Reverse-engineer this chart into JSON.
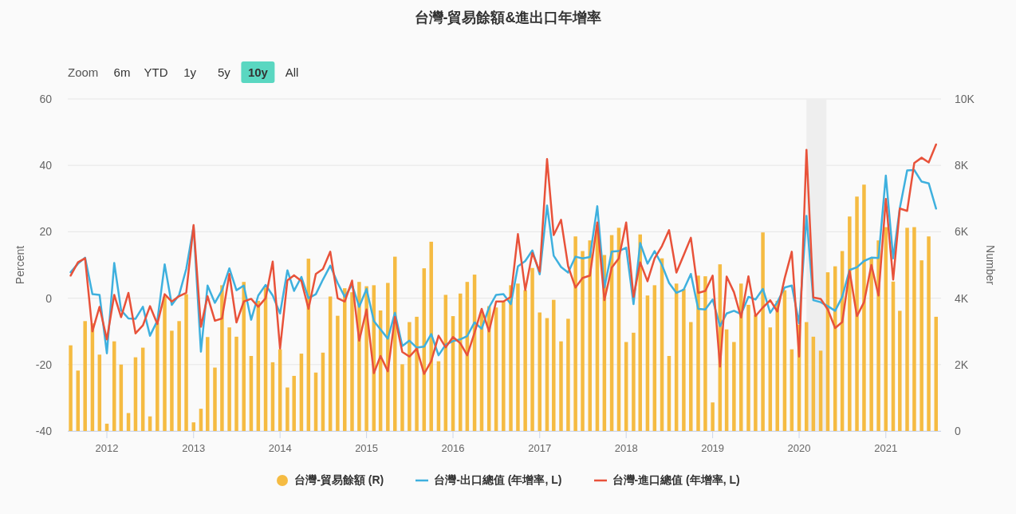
{
  "chart_data": {
    "type": "bar",
    "title": "台灣-貿易餘額&進出口年增率",
    "ylabel": "Percent",
    "y2label": "Number",
    "annotations": [
      "Zoom",
      "6m",
      "YTD",
      "1y",
      "5y",
      "10y",
      "All"
    ],
    "x": [
      "2011-08",
      "2011-09",
      "2011-10",
      "2011-11",
      "2011-12",
      "2012-01",
      "2012-02",
      "2012-03",
      "2012-04",
      "2012-05",
      "2012-06",
      "2012-07",
      "2012-08",
      "2012-09",
      "2012-10",
      "2012-11",
      "2012-12",
      "2013-01",
      "2013-02",
      "2013-03",
      "2013-04",
      "2013-05",
      "2013-06",
      "2013-07",
      "2013-08",
      "2013-09",
      "2013-10",
      "2013-11",
      "2013-12",
      "2014-01",
      "2014-02",
      "2014-03",
      "2014-04",
      "2014-05",
      "2014-06",
      "2014-07",
      "2014-08",
      "2014-09",
      "2014-10",
      "2014-11",
      "2014-12",
      "2015-01",
      "2015-02",
      "2015-03",
      "2015-04",
      "2015-05",
      "2015-06",
      "2015-07",
      "2015-08",
      "2015-09",
      "2015-10",
      "2015-11",
      "2015-12",
      "2016-01",
      "2016-02",
      "2016-03",
      "2016-04",
      "2016-05",
      "2016-06",
      "2016-07",
      "2016-08",
      "2016-09",
      "2016-10",
      "2016-11",
      "2016-12",
      "2017-01",
      "2017-02",
      "2017-03",
      "2017-04",
      "2017-05",
      "2017-06",
      "2017-07",
      "2017-08",
      "2017-09",
      "2017-10",
      "2017-11",
      "2017-12",
      "2018-01",
      "2018-02",
      "2018-03",
      "2018-04",
      "2018-05",
      "2018-06",
      "2018-07",
      "2018-08",
      "2018-09",
      "2018-10",
      "2018-11",
      "2018-12",
      "2019-01",
      "2019-02",
      "2019-03",
      "2019-04",
      "2019-05",
      "2019-06",
      "2019-07",
      "2019-08",
      "2019-09",
      "2019-10",
      "2019-11",
      "2019-12",
      "2020-01",
      "2020-02",
      "2020-03",
      "2020-04",
      "2020-05",
      "2020-06",
      "2020-07",
      "2020-08",
      "2020-09",
      "2020-10",
      "2020-11",
      "2020-12",
      "2021-01",
      "2021-02",
      "2021-03",
      "2021-04",
      "2021-05",
      "2021-06",
      "2021-07",
      "2021-08"
    ],
    "series": [
      {
        "name": "台灣-貿易餘額 (R)",
        "axis": "y2",
        "color": "#f5bb42",
        "values": [
          2580,
          1820,
          3310,
          3240,
          2300,
          220,
          2700,
          2000,
          540,
          2220,
          2510,
          440,
          3260,
          4040,
          3020,
          3310,
          4120,
          260,
          670,
          2830,
          1910,
          4390,
          3120,
          2840,
          4490,
          2260,
          3920,
          4320,
          2070,
          2460,
          1310,
          1660,
          2330,
          5190,
          1760,
          2360,
          4050,
          3470,
          4300,
          4180,
          4490,
          4360,
          4390,
          3630,
          4460,
          5250,
          2010,
          3280,
          3440,
          4900,
          5700,
          2100,
          4100,
          3460,
          4140,
          4490,
          4710,
          3560,
          3760,
          3720,
          3900,
          4390,
          4440,
          4240,
          4910,
          3570,
          3400,
          3950,
          2700,
          3380,
          5860,
          5420,
          5740,
          6200,
          5300,
          5900,
          6120,
          2680,
          2960,
          5920,
          4080,
          4390,
          5200,
          2260,
          4440,
          4280,
          3280,
          4680,
          4660,
          860,
          5020,
          3060,
          2680,
          4440,
          3800,
          3500,
          5980,
          3120,
          3920,
          4240,
          2460,
          3200,
          3280,
          2840,
          2420,
          4780,
          4960,
          5420,
          6460,
          7060,
          7420,
          5200,
          5740,
          6140,
          4500,
          3620,
          6120,
          6140,
          5140,
          5860,
          3440
        ]
      },
      {
        "name": "台灣-出口總值 (年增率, L)",
        "type": "line",
        "color": "#3eb0de",
        "values": [
          7.8,
          10.4,
          12.2,
          1.2,
          1.0,
          -16.6,
          10.6,
          -3.6,
          -6.1,
          -6.2,
          -2.6,
          -11.3,
          -6.8,
          10.2,
          -2.0,
          1.0,
          8.8,
          21.6,
          -16.1,
          3.8,
          -1.4,
          2.4,
          9.0,
          2.4,
          3.8,
          -6.5,
          0.8,
          4.0,
          0.8,
          -4.6,
          8.4,
          2.2,
          6.4,
          0,
          1.2,
          5.6,
          9.8,
          4.6,
          0.4,
          4.0,
          -2.6,
          2.8,
          -6.9,
          -9.4,
          -12.2,
          -4.4,
          -14.4,
          -12.8,
          -14.9,
          -14.6,
          -10.8,
          -17.2,
          -14.0,
          -12.9,
          -12.4,
          -11.4,
          -7.3,
          -9.2,
          -2.8,
          1.0,
          1.2,
          -1.8,
          9.6,
          11.2,
          14.4,
          7.2,
          27.9,
          12.8,
          9.4,
          7.7,
          12.5,
          12.0,
          12.4,
          27.7,
          3.2,
          14.0,
          14.2,
          15.2,
          -1.8,
          16.6,
          10.4,
          14.2,
          10.0,
          4.6,
          1.6,
          2.6,
          7.3,
          -3.2,
          -3.4,
          -0.4,
          -8.4,
          -4.6,
          -3.8,
          -4.8,
          0.4,
          -0.4,
          2.8,
          -4.4,
          -1.2,
          3.2,
          3.8,
          -7.6,
          24.8,
          -0.6,
          -1.2,
          -2.4,
          -3.8,
          0.4,
          8.5,
          9.3,
          11.2,
          12.2,
          12.1,
          36.9,
          12.0,
          27.1,
          38.5,
          38.6,
          35.1,
          34.6,
          27.0
        ]
      },
      {
        "name": "台灣-進口總值 (年增率, L)",
        "type": "line",
        "color": "#e8523a",
        "values": [
          6.8,
          10.8,
          12.0,
          -10.0,
          -2.6,
          -12.4,
          1.0,
          -5.7,
          1.6,
          -10.6,
          -8.2,
          -2.4,
          -7.8,
          1.2,
          -1.0,
          0.6,
          1.6,
          22.0,
          -8.6,
          0.6,
          -6.8,
          -6.1,
          7.3,
          -7.3,
          -1.0,
          -0.2,
          -2.6,
          0,
          11.0,
          -15.2,
          5.4,
          6.9,
          5.2,
          -3.2,
          7.3,
          8.8,
          14.0,
          0,
          -1.0,
          5.3,
          -12.8,
          -3.4,
          -22.6,
          -17.4,
          -22.0,
          -5.6,
          -16.2,
          -17.6,
          -15.2,
          -22.8,
          -19.0,
          -11.3,
          -14.8,
          -11.7,
          -13.6,
          -17.2,
          -10.4,
          -3.2,
          -10.0,
          -1.0,
          -1.0,
          0.4,
          19.3,
          2.4,
          13.6,
          8.0,
          41.9,
          19.0,
          23.6,
          9.6,
          3.2,
          6.1,
          6.8,
          22.8,
          -0.6,
          9.2,
          12.0,
          22.8,
          0.4,
          10.8,
          5.1,
          12.0,
          15.7,
          20.5,
          7.7,
          13.0,
          18.2,
          1.6,
          2.2,
          6.8,
          -20.6,
          6.5,
          1.8,
          -5.8,
          6.6,
          -5.4,
          -2.8,
          -0.6,
          -4.0,
          6.0,
          14.0,
          -17.6,
          44.7,
          0.2,
          -0.2,
          -3.4,
          -9.0,
          -7.2,
          8.2,
          -5.4,
          -1.2,
          10.0,
          0.8,
          29.9,
          5.6,
          27.0,
          26.3,
          40.7,
          42.3,
          40.9,
          46.3
        ]
      }
    ],
    "xlim": [
      "2011-07-20",
      "2021-08-22"
    ],
    "xticks": [
      "2012",
      "2013",
      "2014",
      "2015",
      "2016",
      "2017",
      "2018",
      "2019",
      "2020",
      "2021"
    ],
    "ylim": [
      -40,
      60
    ],
    "yticks": [
      -40,
      -20,
      0,
      20,
      40,
      60
    ],
    "y2lim": [
      0,
      10000
    ],
    "y2ticks": [
      0,
      {
        "value": 2000,
        "label": "2K"
      },
      {
        "value": 4000,
        "label": "4K"
      },
      {
        "value": 6000,
        "label": "6K"
      },
      {
        "value": 8000,
        "label": "8K"
      },
      {
        "value": 10000,
        "label": "10K"
      }
    ],
    "bands": [
      {
        "axis": "x",
        "from": "2020-02",
        "to": "2020-04-25",
        "color": "#eeeeee"
      }
    ],
    "grid": "y",
    "legend": "bottom"
  }
}
